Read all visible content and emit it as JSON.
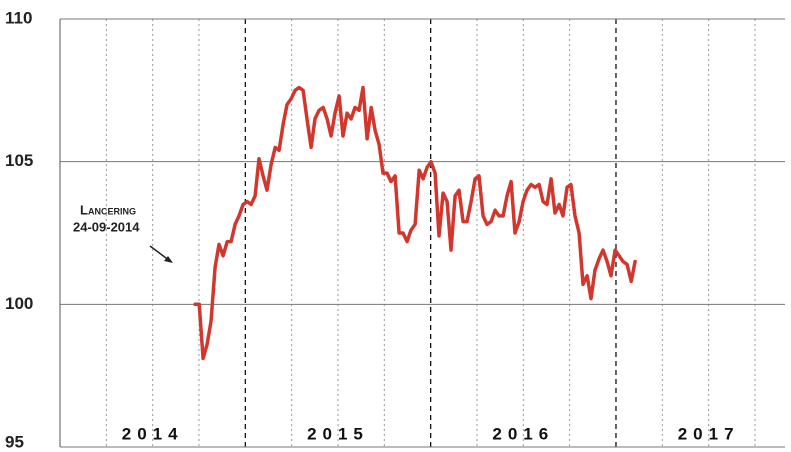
{
  "chart_data": {
    "type": "line",
    "annotation": {
      "title": "Lancering",
      "date": "24-09-2014"
    },
    "xlim": [
      2014,
      2017.912
    ],
    "xticks": [
      2014.25,
      2014.5,
      2014.75,
      2015,
      2015.25,
      2015.5,
      2015.75,
      2016,
      2016.25,
      2016.5,
      2016.75,
      2017,
      2017.25,
      2017.5,
      2017.75
    ],
    "year_labels": [
      {
        "value": 2014.5,
        "label": "2014"
      },
      {
        "value": 2015.5,
        "label": "2015"
      },
      {
        "value": 2016.5,
        "label": "2016"
      },
      {
        "value": 2017.5,
        "label": "2017"
      }
    ],
    "ylim": [
      95,
      110
    ],
    "yticks": [
      95,
      100,
      105,
      110
    ],
    "grid": true,
    "series": [
      {
        "color": "#d2372e",
        "x": [
          2014.729,
          2014.751,
          2014.772,
          2014.794,
          2014.815,
          2014.837,
          2014.858,
          2014.88,
          2014.902,
          2014.923,
          2014.945,
          2014.966,
          2014.988,
          2015.01,
          2015.031,
          2015.053,
          2015.074,
          2015.096,
          2015.117,
          2015.139,
          2015.161,
          2015.182,
          2015.204,
          2015.225,
          2015.247,
          2015.269,
          2015.29,
          2015.312,
          2015.333,
          2015.355,
          2015.376,
          2015.398,
          2015.42,
          2015.441,
          2015.463,
          2015.484,
          2015.506,
          2015.527,
          2015.549,
          2015.571,
          2015.592,
          2015.614,
          2015.635,
          2015.657,
          2015.679,
          2015.7,
          2015.722,
          2015.743,
          2015.765,
          2015.786,
          2015.808,
          2015.83,
          2015.851,
          2015.873,
          2015.894,
          2015.916,
          2015.938,
          2015.959,
          2015.981,
          2016.002,
          2016.024,
          2016.045,
          2016.067,
          2016.089,
          2016.11,
          2016.132,
          2016.153,
          2016.175,
          2016.196,
          2016.218,
          2016.24,
          2016.261,
          2016.283,
          2016.304,
          2016.326,
          2016.348,
          2016.369,
          2016.391,
          2016.412,
          2016.434,
          2016.455,
          2016.477,
          2016.499,
          2016.52,
          2016.542,
          2016.563,
          2016.585,
          2016.607,
          2016.628,
          2016.65,
          2016.671,
          2016.693,
          2016.714,
          2016.736,
          2016.757,
          2016.779,
          2016.801,
          2016.822,
          2016.844,
          2016.865,
          2016.887,
          2016.909,
          2016.93,
          2016.952,
          2016.973,
          2016.995,
          2017.017,
          2017.038,
          2017.06,
          2017.082,
          2017.103
        ],
        "values": [
          100.0,
          100.0,
          98.1,
          98.6,
          99.4,
          101.3,
          102.1,
          101.7,
          102.2,
          102.2,
          102.8,
          103.1,
          103.5,
          103.6,
          103.5,
          103.8,
          105.1,
          104.5,
          104.0,
          104.9,
          105.5,
          105.4,
          106.3,
          107.0,
          107.2,
          107.5,
          107.6,
          107.5,
          106.5,
          105.5,
          106.5,
          106.8,
          106.9,
          106.5,
          105.9,
          106.7,
          107.3,
          105.9,
          106.7,
          106.5,
          106.9,
          106.8,
          107.6,
          105.8,
          106.9,
          106.1,
          105.6,
          104.6,
          104.6,
          104.3,
          104.5,
          102.5,
          102.5,
          102.2,
          102.6,
          102.8,
          104.7,
          104.4,
          104.8,
          105.0,
          104.6,
          102.4,
          103.9,
          103.6,
          101.9,
          103.8,
          104.0,
          102.9,
          102.9,
          103.6,
          104.4,
          104.5,
          103.1,
          102.8,
          102.9,
          103.3,
          103.1,
          103.1,
          103.8,
          104.3,
          102.5,
          102.9,
          103.6,
          104.0,
          104.2,
          104.1,
          104.2,
          103.6,
          103.5,
          104.4,
          103.2,
          103.5,
          103.1,
          104.1,
          104.2,
          103.1,
          102.5,
          100.7,
          101.0,
          100.2,
          101.2,
          101.6,
          101.9,
          101.5,
          101.0,
          101.9,
          101.7,
          101.5,
          101.4,
          100.8,
          101.5
        ]
      }
    ]
  }
}
